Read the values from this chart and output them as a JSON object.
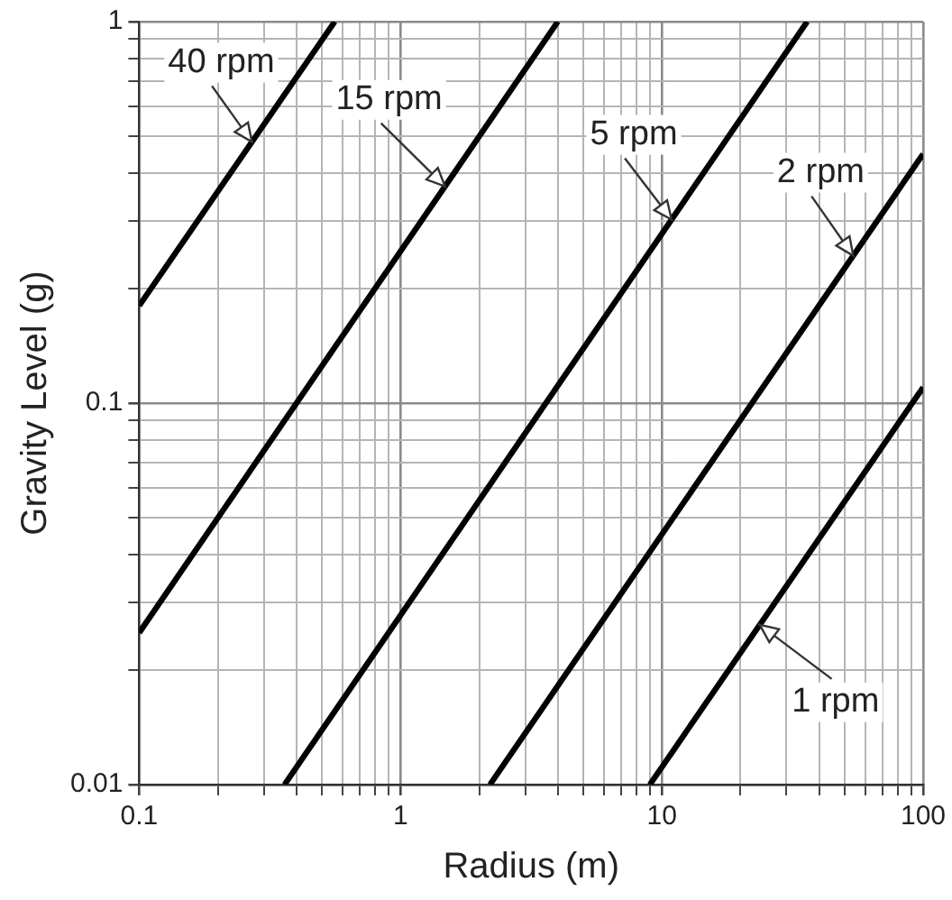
{
  "chart_data": {
    "type": "line",
    "xlabel": "Radius (m)",
    "ylabel": "Gravity Level (g)",
    "log": "xy",
    "grid": true,
    "legend": false,
    "marker": "none",
    "line_style": "solid",
    "xlim": [
      0.1,
      100
    ],
    "ylim": [
      0.01,
      1
    ],
    "xticks": [
      0.1,
      {
        "value": 0.2,
        "label": null
      },
      {
        "value": 0.3,
        "label": null
      },
      {
        "value": 0.4,
        "label": null
      },
      {
        "value": 0.5,
        "label": null
      },
      {
        "value": 0.6,
        "label": null
      },
      {
        "value": 0.7,
        "label": null
      },
      {
        "value": 0.8,
        "label": null
      },
      {
        "value": 0.9,
        "label": null
      },
      1,
      {
        "value": 2,
        "label": null
      },
      {
        "value": 3,
        "label": null
      },
      {
        "value": 4,
        "label": null
      },
      {
        "value": 5,
        "label": null
      },
      {
        "value": 6,
        "label": null
      },
      {
        "value": 7,
        "label": null
      },
      {
        "value": 8,
        "label": null
      },
      {
        "value": 9,
        "label": null
      },
      10,
      {
        "value": 20,
        "label": null
      },
      {
        "value": 30,
        "label": null
      },
      {
        "value": 40,
        "label": null
      },
      {
        "value": 50,
        "label": null
      },
      {
        "value": 60,
        "label": null
      },
      {
        "value": 70,
        "label": null
      },
      {
        "value": 80,
        "label": null
      },
      {
        "value": 90,
        "label": null
      },
      100
    ],
    "yticks": [
      0.01,
      {
        "value": 0.02,
        "label": null
      },
      {
        "value": 0.03,
        "label": null
      },
      {
        "value": 0.04,
        "label": null
      },
      {
        "value": 0.05,
        "label": null
      },
      {
        "value": 0.06,
        "label": null
      },
      {
        "value": 0.07,
        "label": null
      },
      {
        "value": 0.08,
        "label": null
      },
      {
        "value": 0.09,
        "label": null
      },
      0.1,
      {
        "value": 0.2,
        "label": null
      },
      {
        "value": 0.3,
        "label": null
      },
      {
        "value": 0.4,
        "label": null
      },
      {
        "value": 0.5,
        "label": null
      },
      {
        "value": 0.6,
        "label": null
      },
      {
        "value": 0.7,
        "label": null
      },
      {
        "value": 0.8,
        "label": null
      },
      {
        "value": 0.9,
        "label": null
      },
      1
    ],
    "series": [
      {
        "name": "40 rpm",
        "color": "#000000",
        "x": [
          0.1,
          0.56
        ],
        "values": [
          0.18,
          1
        ]
      },
      {
        "name": "15 rpm",
        "color": "#000000",
        "x": [
          0.1,
          4
        ],
        "values": [
          0.025,
          1
        ]
      },
      {
        "name": "5 rpm",
        "color": "#000000",
        "x": [
          0.36,
          36
        ],
        "values": [
          0.01,
          1
        ]
      },
      {
        "name": "2 rpm",
        "color": "#000000",
        "x": [
          2.2,
          100
        ],
        "values": [
          0.01,
          0.45
        ]
      },
      {
        "name": "1 rpm",
        "color": "#000000",
        "x": [
          9,
          100
        ],
        "values": [
          0.01,
          0.11
        ]
      }
    ]
  }
}
